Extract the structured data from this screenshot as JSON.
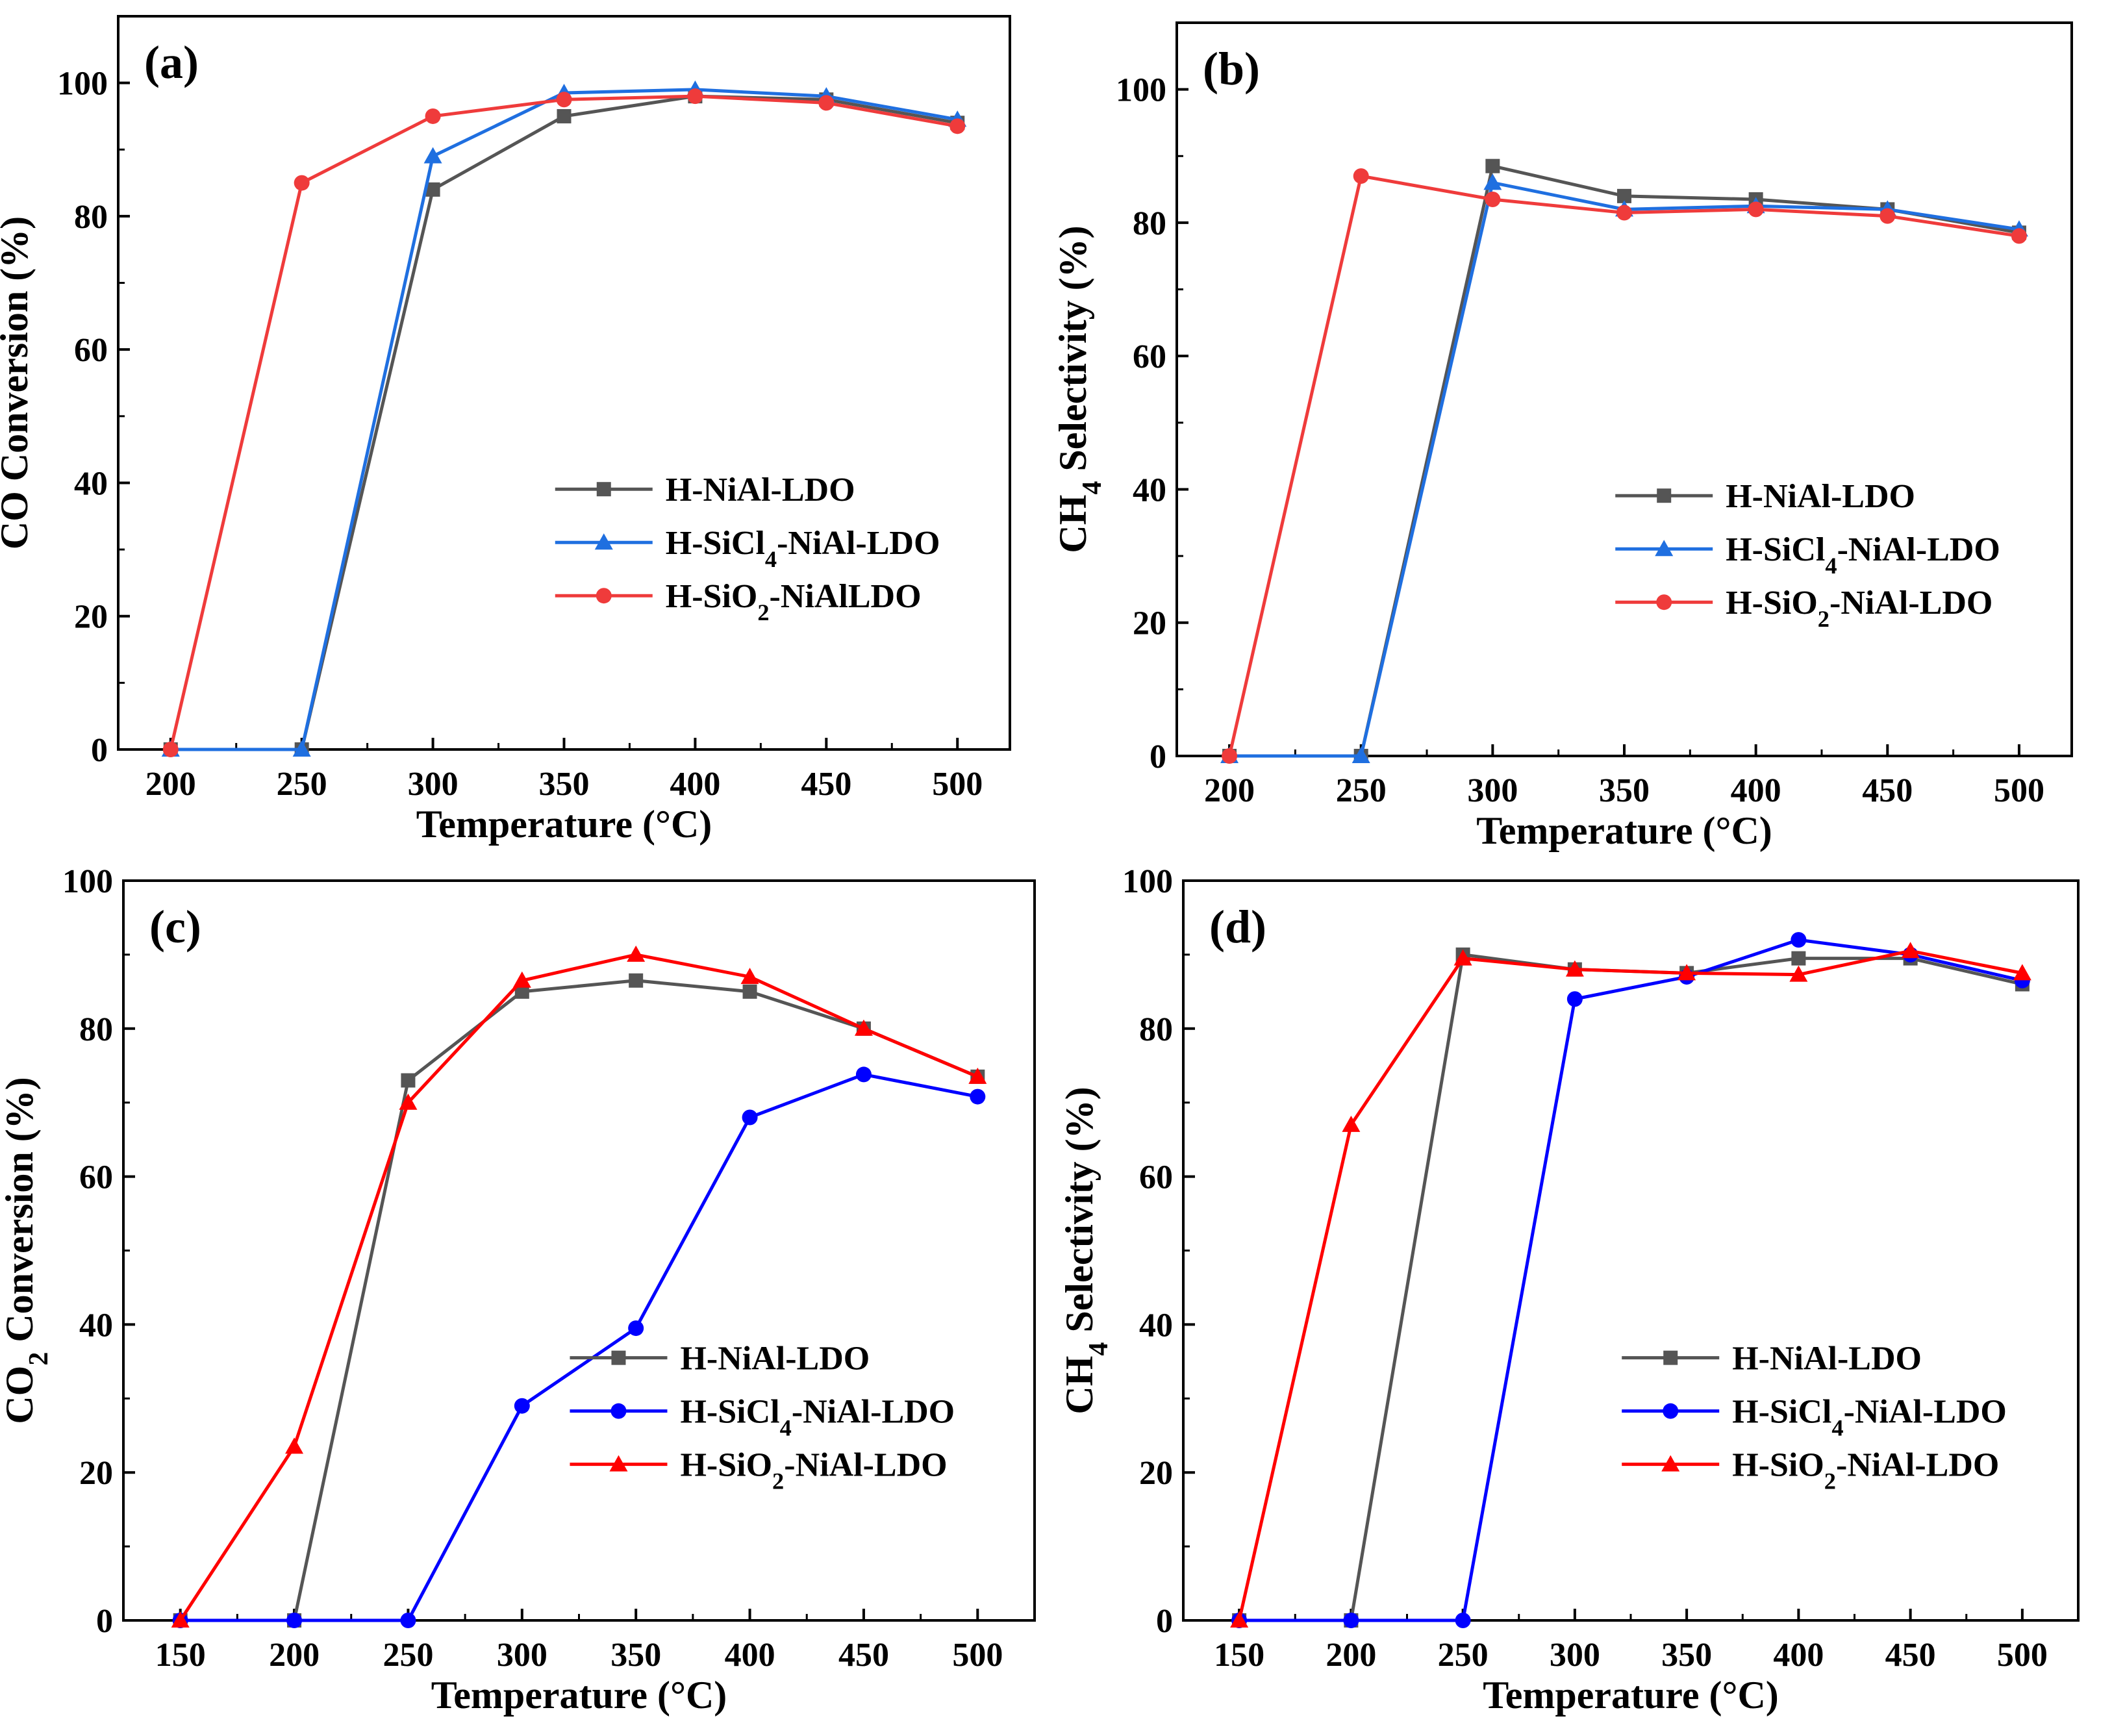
{
  "chart_data": [
    {
      "type": "line",
      "panel": "(a)",
      "xlabel": "Temperature (°C)",
      "ylabel_parts": [
        {
          "text": "CO Conversion (%)"
        }
      ],
      "xlim": [
        180,
        520
      ],
      "xticks": [
        200,
        250,
        300,
        350,
        400,
        450,
        500
      ],
      "ylim": [
        0,
        110
      ],
      "yticks": [
        0,
        20,
        40,
        60,
        80,
        100
      ],
      "legend_position": "bottom-right",
      "series": [
        {
          "name": "H-NiAl-LDO",
          "label_parts": [
            {
              "text": "H-NiAl-LDO"
            }
          ],
          "color": "#555555",
          "marker": "square",
          "x": [
            200,
            250,
            300,
            350,
            400,
            450,
            500
          ],
          "values": [
            0,
            0,
            84,
            95,
            98,
            97.5,
            94
          ]
        },
        {
          "name": "H-SiCl4-NiAl-LDO",
          "label_parts": [
            {
              "text": "H-SiCl"
            },
            {
              "text": "4",
              "sub": true
            },
            {
              "text": "-NiAl-LDO"
            }
          ],
          "color": "#1f6fe0",
          "marker": "triangle",
          "x": [
            200,
            250,
            300,
            350,
            400,
            450,
            500
          ],
          "values": [
            0,
            0,
            89,
            98.5,
            99,
            98,
            94.5
          ]
        },
        {
          "name": "H-SiO2-NiAlLDO",
          "label_parts": [
            {
              "text": "H-SiO"
            },
            {
              "text": "2",
              "sub": true
            },
            {
              "text": "-NiAlLDO"
            }
          ],
          "color": "#ef3b3b",
          "marker": "circle",
          "x": [
            200,
            250,
            300,
            350,
            400,
            450,
            500
          ],
          "values": [
            0,
            85,
            95,
            97.5,
            98,
            97,
            93.5
          ]
        }
      ]
    },
    {
      "type": "line",
      "panel": "(b)",
      "xlabel": "Temperature (°C)",
      "ylabel_parts": [
        {
          "text": "CH"
        },
        {
          "text": "4",
          "sub": true
        },
        {
          "text": " Selectivity (%)"
        }
      ],
      "xlim": [
        180,
        520
      ],
      "xticks": [
        200,
        250,
        300,
        350,
        400,
        450,
        500
      ],
      "ylim": [
        0,
        110
      ],
      "yticks": [
        0,
        20,
        40,
        60,
        80,
        100
      ],
      "legend_position": "bottom-right",
      "series": [
        {
          "name": "H-NiAl-LDO",
          "label_parts": [
            {
              "text": "H-NiAl-LDO"
            }
          ],
          "color": "#555555",
          "marker": "square",
          "x": [
            200,
            250,
            300,
            350,
            400,
            450,
            500
          ],
          "values": [
            0,
            0,
            88.5,
            84,
            83.5,
            82,
            78.5
          ]
        },
        {
          "name": "H-SiCl4-NiAl-LDO",
          "label_parts": [
            {
              "text": "H-SiCl"
            },
            {
              "text": "4",
              "sub": true
            },
            {
              "text": "-NiAl-LDO"
            }
          ],
          "color": "#1f6fe0",
          "marker": "triangle",
          "x": [
            200,
            250,
            300,
            350,
            400,
            450,
            500
          ],
          "values": [
            0,
            0,
            86,
            82,
            82.5,
            82,
            79
          ]
        },
        {
          "name": "H-SiO2-NiAl-LDO",
          "label_parts": [
            {
              "text": "H-SiO"
            },
            {
              "text": "2",
              "sub": true
            },
            {
              "text": "-NiAl-LDO"
            }
          ],
          "color": "#ef3b3b",
          "marker": "circle",
          "x": [
            200,
            250,
            300,
            350,
            400,
            450,
            500
          ],
          "values": [
            0,
            87,
            83.5,
            81.5,
            82,
            81,
            78
          ]
        }
      ]
    },
    {
      "type": "line",
      "panel": "(c)",
      "xlabel": "Temperature (°C)",
      "ylabel_parts": [
        {
          "text": "CO"
        },
        {
          "text": "2",
          "sub": true
        },
        {
          "text": " Conversion (%)"
        }
      ],
      "xlim": [
        125,
        525
      ],
      "xticks": [
        150,
        200,
        250,
        300,
        350,
        400,
        450,
        500
      ],
      "ylim": [
        0,
        100
      ],
      "yticks": [
        0,
        20,
        40,
        60,
        80,
        100
      ],
      "legend_position": "bottom-right",
      "series": [
        {
          "name": "H-NiAl-LDO",
          "label_parts": [
            {
              "text": "H-NiAl-LDO"
            }
          ],
          "color": "#555555",
          "marker": "square",
          "x": [
            150,
            200,
            250,
            300,
            350,
            400,
            450,
            500
          ],
          "values": [
            0,
            0,
            73,
            85,
            86.5,
            85,
            80,
            73.5
          ]
        },
        {
          "name": "H-SiCl4-NiAl-LDO",
          "label_parts": [
            {
              "text": "H-SiCl"
            },
            {
              "text": "4",
              "sub": true
            },
            {
              "text": "-NiAl-LDO"
            }
          ],
          "color": "#0000ff",
          "marker": "circle",
          "x": [
            150,
            200,
            250,
            300,
            350,
            400,
            450,
            500
          ],
          "values": [
            0,
            0,
            0,
            29,
            39.5,
            68,
            73.8,
            70.8
          ]
        },
        {
          "name": "H-SiO2-NiAl-LDO",
          "label_parts": [
            {
              "text": "H-SiO"
            },
            {
              "text": "2",
              "sub": true
            },
            {
              "text": "-NiAl-LDO"
            }
          ],
          "color": "#ff0000",
          "marker": "triangle",
          "x": [
            150,
            200,
            250,
            300,
            350,
            400,
            450,
            500
          ],
          "values": [
            0,
            23.5,
            70,
            86.5,
            90,
            87,
            80,
            73.5
          ]
        }
      ]
    },
    {
      "type": "line",
      "panel": "(d)",
      "xlabel": "Temperature (°C)",
      "ylabel_parts": [
        {
          "text": "CH"
        },
        {
          "text": "4",
          "sub": true
        },
        {
          "text": " Selectivity (%)"
        }
      ],
      "xlim": [
        125,
        525
      ],
      "xticks": [
        150,
        200,
        250,
        300,
        350,
        400,
        450,
        500
      ],
      "ylim": [
        0,
        100
      ],
      "yticks": [
        0,
        20,
        40,
        60,
        80,
        100
      ],
      "legend_position": "bottom-right",
      "series": [
        {
          "name": "H-NiAl-LDO",
          "label_parts": [
            {
              "text": "H-NiAl-LDO"
            }
          ],
          "color": "#555555",
          "marker": "square",
          "x": [
            150,
            200,
            250,
            300,
            350,
            400,
            450,
            500
          ],
          "values": [
            0,
            0,
            90,
            88,
            87.5,
            89.5,
            89.5,
            86
          ]
        },
        {
          "name": "H-SiCl4-NiAl-LDO",
          "label_parts": [
            {
              "text": "H-SiCl"
            },
            {
              "text": "4",
              "sub": true
            },
            {
              "text": "-NiAl-LDO"
            }
          ],
          "color": "#0000ff",
          "marker": "circle",
          "x": [
            150,
            200,
            250,
            300,
            350,
            400,
            450,
            500
          ],
          "values": [
            0,
            0,
            0,
            84,
            87,
            92,
            90,
            86.5
          ]
        },
        {
          "name": "H-SiO2-NiAl-LDO",
          "label_parts": [
            {
              "text": "H-SiO"
            },
            {
              "text": "2",
              "sub": true
            },
            {
              "text": "-NiAl-LDO"
            }
          ],
          "color": "#ff0000",
          "marker": "triangle",
          "x": [
            150,
            200,
            250,
            300,
            350,
            400,
            450,
            500
          ],
          "values": [
            0,
            67,
            89.5,
            88,
            87.5,
            87.3,
            90.5,
            87.5
          ]
        }
      ]
    }
  ]
}
